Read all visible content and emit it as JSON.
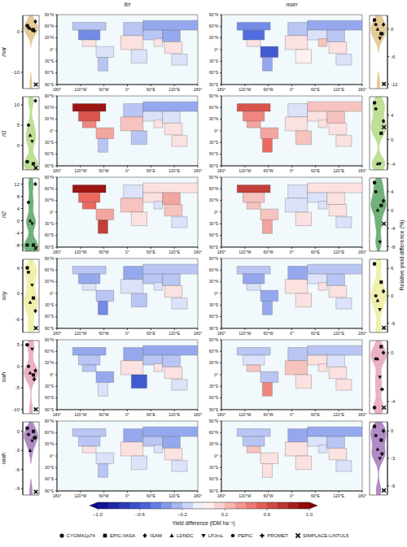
{
  "chart_data": {
    "type": "composite",
    "columns": [
      "firr",
      "noirr"
    ],
    "violin_axis_label": "Relative yield difference (%)",
    "legend": "bottom",
    "models": [
      {
        "name": "CYGMA1p74",
        "marker": "circle"
      },
      {
        "name": "EPIC-IIASA",
        "marker": "square"
      },
      {
        "name": "ISAM",
        "marker": "diamond"
      },
      {
        "name": "LDNDC",
        "marker": "triangle_up"
      },
      {
        "name": "LPJmL",
        "marker": "triangle_down"
      },
      {
        "name": "PEPIC",
        "marker": "pentagon"
      },
      {
        "name": "PROMET",
        "marker": "plus"
      },
      {
        "name": "SIMPLACE-LINTUL5",
        "marker": "x"
      }
    ],
    "map_axes": {
      "xlim": [
        -180,
        180
      ],
      "xticks": [
        {
          "value": -180,
          "label": "180°"
        },
        {
          "value": -120,
          "label": "120°W"
        },
        {
          "value": -60,
          "label": "60°W"
        },
        {
          "value": 0,
          "label": "0°"
        },
        {
          "value": 60,
          "label": "60°E"
        },
        {
          "value": 120,
          "label": "120°E"
        },
        {
          "value": 180,
          "label": "180°"
        }
      ],
      "ylim": [
        -90,
        90
      ],
      "yticks": [
        {
          "value": -90,
          "label": "90°S"
        },
        {
          "value": -60,
          "label": "60°S"
        },
        {
          "value": -30,
          "label": "30°S"
        },
        {
          "value": 0,
          "label": "0°"
        },
        {
          "value": 30,
          "label": "30°N"
        },
        {
          "value": 60,
          "label": "60°N"
        },
        {
          "value": 90,
          "label": "90°N"
        }
      ]
    },
    "region_boxes": [
      [
        -140,
        -55,
        50,
        70
      ],
      [
        -125,
        -70,
        25,
        50
      ],
      [
        -115,
        -80,
        8,
        25
      ],
      [
        -80,
        -35,
        -20,
        8
      ],
      [
        -75,
        -50,
        -55,
        -20
      ],
      [
        -10,
        40,
        36,
        70
      ],
      [
        40,
        180,
        50,
        75
      ],
      [
        -17,
        40,
        0,
        36
      ],
      [
        10,
        50,
        -35,
        0
      ],
      [
        40,
        90,
        25,
        50
      ],
      [
        68,
        90,
        8,
        28
      ],
      [
        90,
        135,
        20,
        50
      ],
      [
        95,
        140,
        -10,
        20
      ],
      [
        113,
        153,
        -40,
        -12
      ]
    ],
    "colorbar": {
      "range": [
        -1,
        1
      ],
      "label": "Yield difference (tDM ha⁻¹)",
      "ticks": [
        {
          "value": -1,
          "label": "−1.0"
        },
        {
          "value": -0.6,
          "label": "−0.6"
        },
        {
          "value": -0.2,
          "label": "−0.2"
        },
        {
          "value": 0.2,
          "label": "0.2"
        },
        {
          "value": 0.6,
          "label": "0.6"
        },
        {
          "value": 1,
          "label": "1.0"
        }
      ]
    },
    "rows": [
      {
        "crop": "mai",
        "color": "#e3c58c",
        "firr": {
          "ylim": [
            -14,
            4
          ],
          "yticks": [
            -10,
            0
          ],
          "values": [
            1.5,
            0.5,
            2.5,
            0.8,
            0.3,
            1.0,
            0.2,
            -13
          ]
        },
        "noirr": {
          "ylim": [
            -13,
            3
          ],
          "yticks": [
            -12,
            -6,
            0
          ],
          "values": [
            2,
            -1,
            1,
            0,
            -2,
            1,
            -1,
            -12
          ]
        },
        "map_firr": [
          -0.2,
          -0.4,
          0.1,
          -0.1,
          -0.2,
          -0.2,
          -0.3,
          0.1,
          -0.1,
          -0.2,
          0.1,
          -0.3,
          0.1,
          -0.1
        ],
        "map_noirr": [
          -0.4,
          -0.5,
          0.1,
          -0.6,
          -0.3,
          -0.2,
          -0.3,
          0.1,
          0.05,
          -0.1,
          0.2,
          -0.2,
          0.1,
          -0.1
        ]
      },
      {
        "crop": "ri1",
        "color": "#b8dc8c",
        "firr": {
          "ylim": [
            -6,
            12
          ],
          "yticks": [
            0,
            5,
            10
          ],
          "values": [
            -4,
            -4.5,
            11,
            2.5,
            1,
            5,
            null,
            -5.5
          ]
        },
        "noirr": {
          "ylim": [
            -5,
            7
          ],
          "yticks": [
            -4,
            0,
            4
          ],
          "values": [
            6,
            1,
            3,
            -4,
            -4,
            5,
            null,
            2
          ]
        },
        "map_firr": [
          0.9,
          0.6,
          0.4,
          0.3,
          -0.2,
          -0.2,
          -0.3,
          0.2,
          -0.2,
          -0.1,
          0.1,
          -0.1,
          0.1,
          0.1
        ],
        "map_noirr": [
          0.6,
          0.4,
          0.3,
          0.3,
          0.5,
          -0.1,
          0.2,
          0.1,
          0.2,
          0.1,
          0.1,
          0.2,
          0.1,
          0.1
        ]
      },
      {
        "crop": "ri2",
        "color": "#62a96c",
        "firr": {
          "ylim": [
            -10,
            14
          ],
          "yticks": [
            -8,
            -4,
            0,
            4,
            8,
            12
          ],
          "values": [
            -8,
            -8,
            12,
            0,
            -1,
            6,
            null,
            -9
          ]
        },
        "noirr": {
          "ylim": [
            -9,
            7
          ],
          "yticks": [
            -8,
            -4,
            0,
            4
          ],
          "values": [
            6,
            1,
            2,
            0,
            -7,
            4,
            null,
            -3
          ]
        },
        "map_firr": [
          0.9,
          0.5,
          0.5,
          0.3,
          0.7,
          -0.1,
          0.1,
          0.2,
          0.1,
          0.1,
          -0.1,
          0.3,
          0.2,
          -0.1
        ],
        "map_noirr": [
          0.7,
          0.2,
          0.2,
          0.2,
          0.3,
          -0.1,
          0.1,
          -0.1,
          0.1,
          -0.1,
          -0.1,
          0.1,
          0.1,
          -0.1
        ]
      },
      {
        "crop": "soy",
        "color": "#eeeea2",
        "firr": {
          "ylim": [
            -9,
            8
          ],
          "yticks": [
            -6,
            0,
            6
          ],
          "values": [
            6,
            -1,
            -4,
            -2,
            2,
            5,
            null,
            -8
          ]
        },
        "noirr": {
          "ylim": [
            -8,
            8
          ],
          "yticks": [
            -6,
            0,
            6
          ],
          "values": [
            7,
            3,
            1,
            -1,
            -3,
            0,
            null,
            -7
          ]
        },
        "map_firr": [
          -0.2,
          -0.3,
          -0.1,
          -0.2,
          -0.4,
          -0.3,
          -0.2,
          -0.1,
          -0.2,
          -0.2,
          -0.1,
          -0.2,
          0.1,
          -0.1
        ],
        "map_noirr": [
          -0.2,
          -0.3,
          -0.1,
          -0.3,
          -0.3,
          -0.3,
          -0.2,
          0.1,
          0.1,
          -0.1,
          0.1,
          -0.2,
          0.1,
          -0.1
        ]
      },
      {
        "crop": "swh",
        "color": "#e8a9bd",
        "firr": {
          "ylim": [
            -11,
            6
          ],
          "yticks": [
            -10,
            -5,
            0,
            5
          ],
          "values": [
            5,
            -2,
            -1,
            -1.5,
            4,
            0,
            -3,
            -10
          ]
        },
        "noirr": {
          "ylim": [
            -5,
            1
          ],
          "yticks": [
            -4,
            0
          ],
          "values": [
            -4.5,
            0.5,
            0,
            -0.5,
            -2,
            -0.5,
            -3,
            -4.5
          ]
        },
        "map_firr": [
          -0.3,
          -0.2,
          -0.2,
          -0.3,
          -0.1,
          -0.3,
          -0.3,
          0.1,
          -0.6,
          -0.2,
          0.1,
          -0.2,
          0.1,
          -0.1
        ],
        "map_noirr": [
          -0.2,
          -0.1,
          0.2,
          -0.2,
          0.4,
          -0.2,
          -0.2,
          0.2,
          0.1,
          0.1,
          0.1,
          -0.1,
          0.1,
          0.1
        ]
      },
      {
        "crop": "wwh",
        "color": "#a97fbf",
        "firr": {
          "ylim": [
            -10,
            1.5
          ],
          "yticks": [
            -9,
            -6,
            -3,
            0
          ],
          "values": [
            0.5,
            0,
            -1,
            -3,
            -1.5,
            -0.5,
            -1,
            -9.5
          ]
        },
        "noirr": {
          "ylim": [
            -7,
            1
          ],
          "yticks": [
            -6,
            -3,
            0
          ],
          "values": [
            0.5,
            -1,
            0,
            -2,
            -3,
            -0.5,
            -2.5,
            -6.5
          ]
        },
        "map_firr": [
          -0.2,
          -0.2,
          0.1,
          -0.1,
          -0.2,
          -0.3,
          -0.3,
          0.1,
          -0.1,
          -0.2,
          -0.1,
          -0.3,
          0.1,
          -0.1
        ],
        "map_noirr": [
          -0.2,
          -0.2,
          0.2,
          0.1,
          0.1,
          -0.3,
          -0.3,
          0.1,
          0.1,
          -0.1,
          -0.1,
          -0.2,
          0.1,
          -0.1
        ]
      }
    ]
  }
}
